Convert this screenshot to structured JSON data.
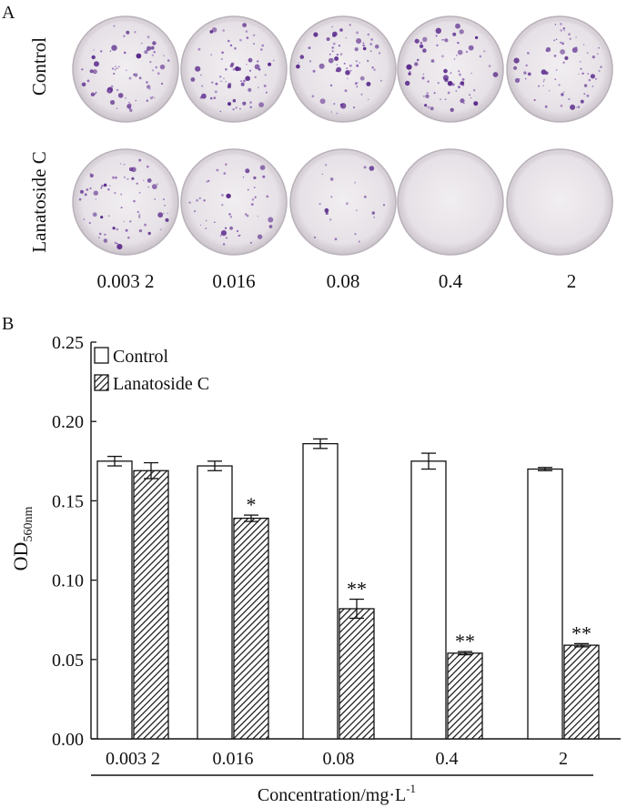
{
  "panel_a": {
    "label": "A",
    "row_labels": [
      "Control",
      "Lanatoside C"
    ],
    "concentration_labels": [
      "0.003 2",
      "0.016",
      "0.08",
      "0.4",
      "2"
    ],
    "colony_density": {
      "control": [
        1,
        1,
        1,
        1,
        1
      ],
      "lanatoside": [
        1,
        0.65,
        0.3,
        0,
        0
      ]
    }
  },
  "panel_b": {
    "label": "B"
  },
  "chart_data": {
    "type": "bar",
    "title": "",
    "xlabel": "Concentration/mg·L",
    "xlabel_sup": "-1",
    "ylabel": "OD",
    "ylabel_sub": "560nm",
    "ylim": [
      0,
      0.25
    ],
    "yticks": [
      0.0,
      0.05,
      0.1,
      0.15,
      0.2,
      0.25
    ],
    "ytick_labels": [
      "0.00",
      "0.05",
      "0.10",
      "0.15",
      "0.20",
      "0.25"
    ],
    "categories": [
      "0.003 2",
      "0.016",
      "0.08",
      "0.4",
      "2"
    ],
    "legend_position": "top-left",
    "series": [
      {
        "name": "Control",
        "pattern": "open",
        "values": [
          0.175,
          0.172,
          0.186,
          0.175,
          0.17
        ],
        "errors": [
          0.003,
          0.003,
          0.003,
          0.005,
          0.001
        ],
        "significance": [
          "",
          "",
          "",
          "",
          ""
        ]
      },
      {
        "name": "Lanatoside C",
        "pattern": "hatched",
        "values": [
          0.169,
          0.139,
          0.082,
          0.054,
          0.059
        ],
        "errors": [
          0.005,
          0.002,
          0.006,
          0.001,
          0.001
        ],
        "significance": [
          "",
          "*",
          "**",
          "**",
          "**"
        ]
      }
    ]
  }
}
